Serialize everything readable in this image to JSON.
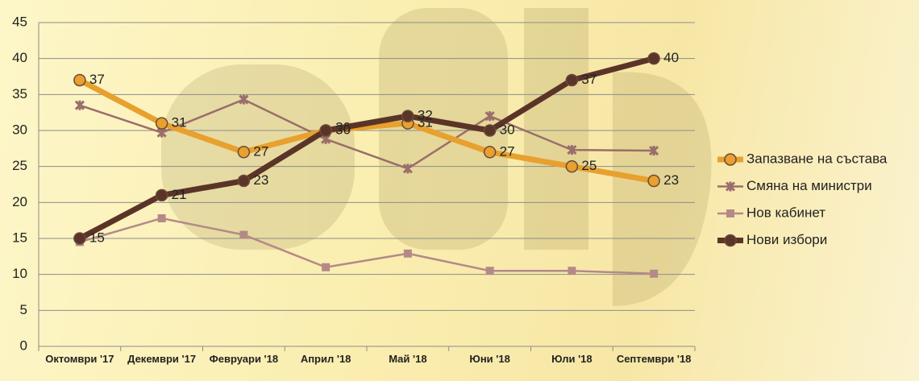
{
  "chart_data": {
    "type": "line",
    "categories": [
      "Октомври '17",
      "Декември '17",
      "Февруари '18",
      "Април '18",
      "Май '18",
      "Юни '18",
      "Юли '18",
      "Септември '18"
    ],
    "series": [
      {
        "name": "Запазване на състава",
        "color": "#e8a02e",
        "marker": "circle",
        "labels": true,
        "values": [
          37,
          31,
          27,
          30,
          31,
          27,
          25,
          23
        ]
      },
      {
        "name": "Смяна на министри",
        "color": "#9a6e6a",
        "marker": "x",
        "labels": false,
        "values": [
          33.5,
          29.7,
          34.3,
          28.8,
          24.7,
          32,
          27.3,
          27.2
        ]
      },
      {
        "name": "Нов кабинет",
        "color": "#b48a88",
        "marker": "square",
        "labels": false,
        "values": [
          14.5,
          17.8,
          15.5,
          11,
          12.9,
          10.5,
          10.5,
          10.1
        ]
      },
      {
        "name": "Нови избори",
        "color": "#5b3428",
        "marker": "circle",
        "labels": true,
        "values": [
          15,
          21,
          23,
          30,
          32,
          30,
          37,
          40
        ]
      }
    ],
    "ylim": [
      0,
      45
    ],
    "yticks": [
      0,
      5,
      10,
      15,
      20,
      25,
      30,
      35,
      40,
      45
    ],
    "grid": true,
    "legend": "right"
  }
}
